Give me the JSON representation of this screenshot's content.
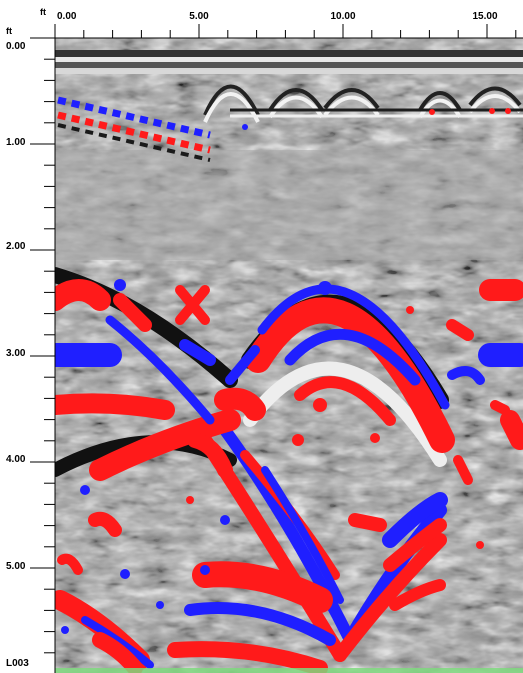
{
  "horizontal_axis": {
    "unit": "ft",
    "ticks": [
      {
        "value": 0,
        "label": "0.00"
      },
      {
        "value": 5,
        "label": "5.00"
      },
      {
        "value": 10,
        "label": "10.00"
      },
      {
        "value": 15,
        "label": "15.00"
      }
    ],
    "minor_step": 1,
    "range": [
      0,
      16.3
    ]
  },
  "vertical_axis": {
    "unit": "ft",
    "ticks": [
      {
        "value": 0,
        "label": "0.00"
      },
      {
        "value": 1,
        "label": "1.00"
      },
      {
        "value": 2,
        "label": "2.00"
      },
      {
        "value": 3,
        "label": "3.00"
      },
      {
        "value": 4,
        "label": "4.00"
      },
      {
        "value": 5,
        "label": "5.00"
      }
    ],
    "minor_step": 0.2,
    "range": [
      0,
      5.8
    ]
  },
  "line_label": "L003",
  "colors": {
    "positive_amplitude": "#ff1a1a",
    "negative_amplitude": "#1f1fff",
    "background_gray": "#9a9a9a"
  }
}
